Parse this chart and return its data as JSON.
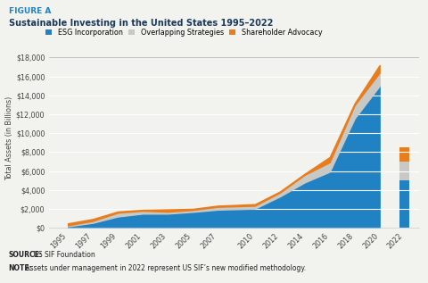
{
  "title_label": "FIGURE A",
  "title_main": "Sustainable Investing in the United States 1995–2022",
  "years_area": [
    1995,
    1997,
    1999,
    2001,
    2003,
    2005,
    2007,
    2010,
    2012,
    2014,
    2016,
    2018,
    2020
  ],
  "esg_area": [
    162,
    529,
    1197,
    1500,
    1500,
    1685,
    1917,
    2034,
    3311,
    4804,
    5929,
    11567,
    14999
  ],
  "overlap_extra": [
    100,
    200,
    400,
    300,
    200,
    200,
    300,
    300,
    400,
    800,
    1000,
    1400,
    1400
  ],
  "shareholder_extra": [
    211,
    207,
    125,
    97,
    248,
    118,
    122,
    164,
    125,
    119,
    556,
    202,
    803
  ],
  "bar_year": 2022,
  "esg_bar": 5063,
  "overlap_bar": 1980,
  "shareholder_bar": 1510,
  "ylim": [
    0,
    19000
  ],
  "yticks": [
    0,
    2000,
    4000,
    6000,
    8000,
    10000,
    12000,
    14000,
    16000,
    18000
  ],
  "color_esg": "#2082c3",
  "color_overlap": "#c8c8c4",
  "color_shareholder": "#e87d1e",
  "color_title_label": "#2082c3",
  "color_title_main": "#1a3a5c",
  "source_text_bold": "SOURCE:",
  "source_text_rest": " US SIF Foundation",
  "note_text_bold": "NOTE:",
  "note_text_rest": " Assets under management in 2022 represent US SIF’s new modified methodology.",
  "bg_color": "#f2f2ee",
  "top_bar_color": "#2082c3",
  "grid_color": "#ffffff",
  "spine_color": "#cccccc",
  "xtick_labels": [
    "1995",
    "1997",
    "1999",
    "2001",
    "2003",
    "2005",
    "2007",
    "2010",
    "2012",
    "2014",
    "2016",
    "2018",
    "2020",
    "2022"
  ]
}
